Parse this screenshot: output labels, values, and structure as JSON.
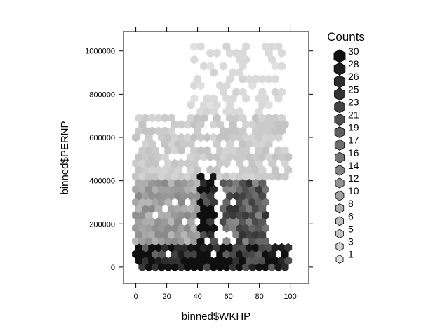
{
  "chart_data": {
    "type": "hexbin",
    "xlabel": "binned$WKHP",
    "ylabel": "binned$PERNP",
    "xlim": [
      -8,
      112
    ],
    "ylim": [
      -75000,
      1090000
    ],
    "x_ticks": [
      0,
      20,
      40,
      60,
      80,
      100
    ],
    "y_ticks": [
      0,
      200000,
      400000,
      600000,
      800000,
      1000000
    ],
    "legend": {
      "title": "Counts",
      "placement": "right",
      "levels": [
        30,
        28,
        26,
        25,
        23,
        21,
        19,
        17,
        16,
        14,
        12,
        10,
        8,
        6,
        5,
        3,
        1
      ]
    },
    "density_bands": [
      {
        "x_range": [
          0,
          100
        ],
        "y_range": [
          0,
          100000
        ],
        "count": 28
      },
      {
        "x_range": [
          42,
          52
        ],
        "y_range": [
          0,
          420000
        ],
        "count": 30
      },
      {
        "x_range": [
          55,
          85
        ],
        "y_range": [
          0,
          400000
        ],
        "count": 19
      },
      {
        "x_range": [
          0,
          40
        ],
        "y_range": [
          100000,
          400000
        ],
        "count": 10
      },
      {
        "x_range": [
          0,
          100
        ],
        "y_range": [
          400000,
          700000
        ],
        "count": 4
      },
      {
        "x_range": [
          35,
          95
        ],
        "y_range": [
          700000,
          1020000
        ],
        "count": 2
      }
    ]
  }
}
